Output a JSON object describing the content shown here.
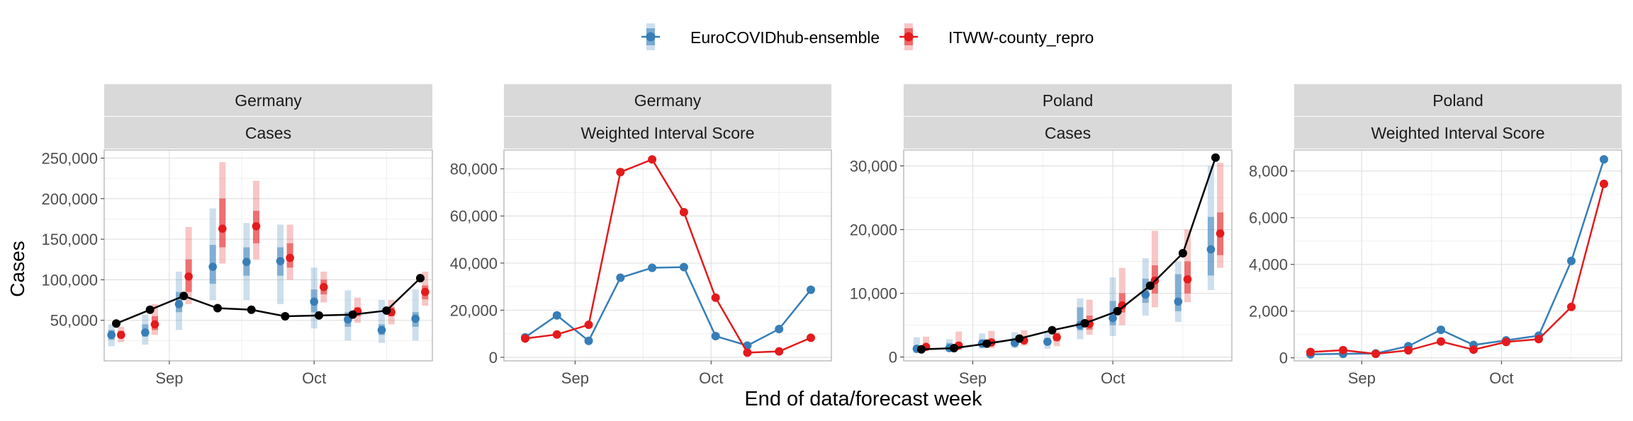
{
  "legend": {
    "entries": [
      {
        "name": "EuroCOVIDhub-ensemble",
        "color": "#377EB8"
      },
      {
        "name": "ITWW-county_repro",
        "color": "#E41A1C"
      }
    ],
    "position": "top"
  },
  "axis_titles": {
    "x": "End of data/forecast week",
    "y": "Cases"
  },
  "chart_data": [
    {
      "type": "line",
      "strip_top": "Germany",
      "strip_bottom": "Cases",
      "ylim": [
        0,
        260000
      ],
      "yticks": [
        50000,
        100000,
        150000,
        200000,
        250000
      ],
      "ytick_labels": [
        "50,000",
        "100,000",
        "150,000",
        "200,000",
        "250,000"
      ],
      "x_dates": [
        "2021-08-21",
        "2021-08-28",
        "2021-09-04",
        "2021-09-11",
        "2021-09-18",
        "2021-09-25",
        "2021-10-02",
        "2021-10-09",
        "2021-10-16",
        "2021-10-23"
      ],
      "xticks": [
        {
          "date": "2021-09-01",
          "label": "Sep"
        },
        {
          "date": "2021-10-01",
          "label": "Oct"
        }
      ],
      "grid": true,
      "observed": {
        "color": "#000000",
        "values": [
          46000,
          63000,
          80000,
          65000,
          63000,
          55000,
          56000,
          57000,
          62000,
          102000
        ]
      },
      "forecasts": [
        {
          "name": "EuroCOVIDhub-ensemble",
          "color": "#377EB8",
          "date_offset_days": -1,
          "median": [
            32000,
            35000,
            70000,
            116000,
            122000,
            123000,
            73000,
            51000,
            38000,
            52000
          ],
          "lower50": [
            26000,
            30000,
            60000,
            95000,
            105000,
            105000,
            60000,
            42000,
            32000,
            42000
          ],
          "upper50": [
            38000,
            45000,
            85000,
            143000,
            140000,
            140000,
            88000,
            60000,
            45000,
            60000
          ],
          "lower90": [
            18000,
            20000,
            38000,
            75000,
            75000,
            70000,
            40000,
            25000,
            22000,
            25000
          ],
          "upper90": [
            45000,
            57000,
            110000,
            188000,
            170000,
            168000,
            115000,
            87000,
            75000,
            88000
          ]
        },
        {
          "name": "ITWW-county_repro",
          "color": "#E41A1C",
          "date_offset_days": 1,
          "median": [
            32000,
            45000,
            104000,
            163000,
            166000,
            127000,
            91000,
            61000,
            60000,
            85000
          ],
          "lower50": [
            28000,
            38000,
            85000,
            140000,
            145000,
            115000,
            82000,
            55000,
            55000,
            76000
          ],
          "upper50": [
            37000,
            55000,
            125000,
            200000,
            185000,
            145000,
            100000,
            66000,
            66000,
            93000
          ],
          "lower90": [
            23000,
            32000,
            70000,
            120000,
            125000,
            100000,
            72000,
            47000,
            45000,
            68000
          ],
          "upper90": [
            42000,
            70000,
            165000,
            245000,
            222000,
            168000,
            110000,
            78000,
            75000,
            110000
          ]
        }
      ]
    },
    {
      "type": "line",
      "strip_top": "Germany",
      "strip_bottom": "Weighted Interval Score",
      "ylim": [
        -1500,
        88000
      ],
      "yticks": [
        0,
        20000,
        40000,
        60000,
        80000
      ],
      "ytick_labels": [
        "0",
        "20,000",
        "40,000",
        "60,000",
        "80,000"
      ],
      "x_dates": [
        "2021-08-21",
        "2021-08-28",
        "2021-09-04",
        "2021-09-11",
        "2021-09-18",
        "2021-09-25",
        "2021-10-02",
        "2021-10-09",
        "2021-10-16",
        "2021-10-23"
      ],
      "xticks": [
        {
          "date": "2021-09-01",
          "label": "Sep"
        },
        {
          "date": "2021-10-01",
          "label": "Oct"
        }
      ],
      "grid": true,
      "series": [
        {
          "name": "EuroCOVIDhub-ensemble",
          "color": "#377EB8",
          "values": [
            8500,
            17800,
            7000,
            33800,
            38000,
            38300,
            9000,
            5000,
            12000,
            28700
          ]
        },
        {
          "name": "ITWW-county_repro",
          "color": "#E41A1C",
          "values": [
            8000,
            9700,
            13800,
            78600,
            84000,
            61600,
            25300,
            2000,
            2500,
            8300
          ]
        }
      ]
    },
    {
      "type": "line",
      "strip_top": "Poland",
      "strip_bottom": "Cases",
      "ylim": [
        -600,
        32500
      ],
      "yticks": [
        0,
        10000,
        20000,
        30000
      ],
      "ytick_labels": [
        "0",
        "10,000",
        "20,000",
        "30,000"
      ],
      "x_dates": [
        "2021-08-21",
        "2021-08-28",
        "2021-09-04",
        "2021-09-11",
        "2021-09-18",
        "2021-09-25",
        "2021-10-02",
        "2021-10-09",
        "2021-10-16",
        "2021-10-23"
      ],
      "xticks": [
        {
          "date": "2021-09-01",
          "label": "Sep"
        },
        {
          "date": "2021-10-01",
          "label": "Oct"
        }
      ],
      "grid": true,
      "observed": {
        "color": "#000000",
        "values": [
          1200,
          1400,
          2100,
          2900,
          4200,
          5300,
          7200,
          11200,
          16300,
          31300
        ]
      },
      "forecasts": [
        {
          "name": "EuroCOVIDhub-ensemble",
          "color": "#377EB8",
          "date_offset_days": -1,
          "median": [
            1300,
            1400,
            2100,
            2200,
            2400,
            5000,
            6100,
            9800,
            8700,
            16900
          ],
          "lower50": [
            900,
            1100,
            1700,
            1800,
            1900,
            4200,
            5000,
            8500,
            7200,
            12800
          ],
          "upper50": [
            1800,
            2200,
            2800,
            3000,
            3000,
            7800,
            8800,
            12300,
            13000,
            22000
          ],
          "lower90": [
            600,
            900,
            1300,
            1400,
            1300,
            2800,
            3300,
            6500,
            5500,
            10500
          ],
          "upper90": [
            3100,
            2800,
            3700,
            3900,
            4000,
            9200,
            12500,
            15500,
            15000,
            30000
          ]
        },
        {
          "name": "ITWW-county_repro",
          "color": "#E41A1C",
          "date_offset_days": 1,
          "median": [
            1600,
            1800,
            2300,
            2600,
            3100,
            5200,
            8100,
            12000,
            12200,
            19400
          ],
          "lower50": [
            1300,
            1500,
            1900,
            2200,
            2500,
            4300,
            7000,
            10000,
            10000,
            16000
          ],
          "upper50": [
            2000,
            2300,
            2800,
            3000,
            3700,
            6500,
            10000,
            14400,
            15000,
            22700
          ],
          "lower90": [
            1000,
            1200,
            1400,
            1800,
            1700,
            3500,
            5000,
            7800,
            8600,
            14000
          ],
          "upper90": [
            3200,
            4000,
            4100,
            4200,
            4000,
            9000,
            14000,
            19800,
            20000,
            30500
          ]
        }
      ]
    },
    {
      "type": "line",
      "strip_top": "Poland",
      "strip_bottom": "Weighted Interval Score",
      "ylim": [
        -130,
        8900
      ],
      "yticks": [
        0,
        2000,
        4000,
        6000,
        8000
      ],
      "ytick_labels": [
        "0",
        "2,000",
        "4,000",
        "6,000",
        "8,000"
      ],
      "x_dates": [
        "2021-08-21",
        "2021-08-28",
        "2021-09-04",
        "2021-09-11",
        "2021-09-18",
        "2021-09-25",
        "2021-10-02",
        "2021-10-09",
        "2021-10-16",
        "2021-10-23"
      ],
      "xticks": [
        {
          "date": "2021-09-01",
          "label": "Sep"
        },
        {
          "date": "2021-10-01",
          "label": "Oct"
        }
      ],
      "grid": true,
      "series": [
        {
          "name": "EuroCOVIDhub-ensemble",
          "color": "#377EB8",
          "values": [
            150,
            170,
            190,
            500,
            1200,
            550,
            750,
            950,
            4150,
            8500
          ]
        },
        {
          "name": "ITWW-county_repro",
          "color": "#E41A1C",
          "values": [
            250,
            330,
            170,
            320,
            700,
            350,
            680,
            800,
            2180,
            7450
          ]
        }
      ]
    }
  ]
}
